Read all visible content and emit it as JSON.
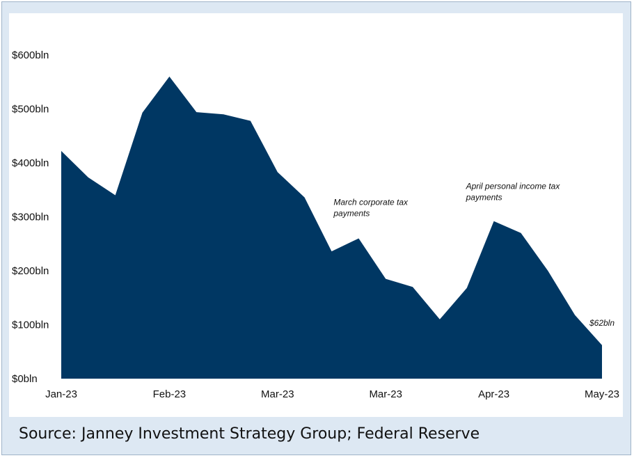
{
  "source": "Source: Janney Investment Strategy Group; Federal Reserve",
  "colors": {
    "area": "#003763",
    "frame_bg": "#dde8f3",
    "frame_border": "#9fb3c8"
  },
  "chart_data": {
    "type": "area",
    "title": "",
    "xlabel": "",
    "ylabel": "",
    "ylim": [
      0,
      600
    ],
    "y_ticks": [
      {
        "value": 0,
        "label": "$0bln"
      },
      {
        "value": 100,
        "label": "$100bln"
      },
      {
        "value": 200,
        "label": "$200bln"
      },
      {
        "value": 300,
        "label": "$300bln"
      },
      {
        "value": 400,
        "label": "$400bln"
      },
      {
        "value": 500,
        "label": "$500bln"
      },
      {
        "value": 600,
        "label": "$600bln"
      }
    ],
    "x_ticks": [
      {
        "index": 0,
        "label": "Jan-23"
      },
      {
        "index": 4,
        "label": "Feb-23"
      },
      {
        "index": 8,
        "label": "Mar-23"
      },
      {
        "index": 12,
        "label": "Mar-23"
      },
      {
        "index": 16,
        "label": "Apr-23"
      },
      {
        "index": 20,
        "label": "May-23"
      }
    ],
    "values": [
      422,
      373,
      340,
      493,
      560,
      494,
      490,
      478,
      383,
      336,
      236,
      260,
      185,
      170,
      110,
      168,
      292,
      270,
      200,
      118,
      62
    ],
    "annotations": [
      {
        "lines": [
          "March corporate tax",
          "payments"
        ],
        "index": 11,
        "value": 260
      },
      {
        "lines": [
          "April personal income tax",
          "payments"
        ],
        "index": 16,
        "value": 292
      },
      {
        "lines": [
          "$62bln"
        ],
        "index": 20,
        "value": 62
      }
    ]
  }
}
